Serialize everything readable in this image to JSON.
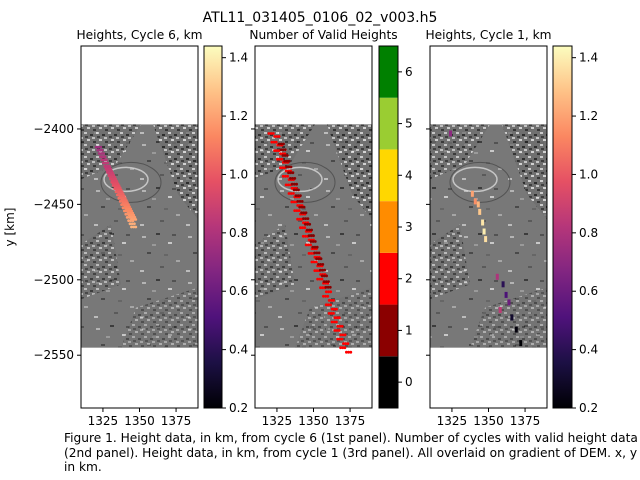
{
  "figure_title": "ATL11_031405_0106_02_v003.h5",
  "caption": "Figure 1. Height data, in km, from cycle 6 (1st panel). Number of cycles with valid height data (2nd panel). Height data, in km, from cycle 1 (3rd panel). All overlaid on gradient of DEM. x, y in km.",
  "colors": {
    "magma": [
      "#000004",
      "#1c1044",
      "#4f127b",
      "#812581",
      "#b5367a",
      "#e55064",
      "#fb8761",
      "#fec287",
      "#fcfdbf"
    ],
    "valid_count": [
      "#000000",
      "#8b0000",
      "#ff0000",
      "#ff8c00",
      "#ffd700",
      "#9acd32",
      "#008000"
    ]
  },
  "chart_data": [
    {
      "type": "scatter",
      "title": "Heights, Cycle 6, km",
      "xlabel": "",
      "ylabel": "y [km]",
      "xlim": [
        1310,
        1390
      ],
      "ylim": [
        -2585,
        -2345
      ],
      "xticks": [
        1325,
        1350,
        1375
      ],
      "yticks": [
        -2550,
        -2500,
        -2450,
        -2400
      ],
      "background": "gradient of DEM",
      "colorbar": {
        "cmap": "magma",
        "range": [
          0.2,
          1.44
        ],
        "ticks": [
          0.2,
          0.4,
          0.6,
          0.8,
          1.0,
          1.2,
          1.4
        ]
      },
      "tracks": [
        {
          "x_start": 1322,
          "y_start": -2412,
          "x_end": 1346,
          "y_end": -2465,
          "v_start": 0.75,
          "v_end": 1.25
        },
        {
          "x_start": 1328,
          "y_start": -2425,
          "x_end": 1346,
          "y_end": -2460,
          "v_start": 0.85,
          "v_end": 1.2
        }
      ]
    },
    {
      "type": "scatter",
      "title": "Number of Valid Heights",
      "xlabel": "",
      "ylabel": "",
      "xlim": [
        1310,
        1390
      ],
      "ylim": [
        -2585,
        -2345
      ],
      "xticks": [
        1325,
        1350,
        1375
      ],
      "yticks": [
        -2550,
        -2500,
        -2450,
        -2400
      ],
      "background": "gradient of DEM",
      "colorbar": {
        "discrete": true,
        "levels": [
          0,
          1,
          2,
          3,
          4,
          5,
          6
        ],
        "ticks": [
          0,
          1,
          2,
          3,
          4,
          5,
          6
        ]
      },
      "tracks": [
        {
          "x_start": 1321,
          "y_start": -2403,
          "x_end": 1370,
          "y_end": -2545,
          "value": 2
        },
        {
          "x_start": 1325,
          "y_start": -2405,
          "x_end": 1374,
          "y_end": -2548,
          "value": 2
        },
        {
          "x_start": 1328,
          "y_start": -2410,
          "x_end": 1360,
          "y_end": -2505,
          "value": 1
        }
      ]
    },
    {
      "type": "scatter",
      "title": "Heights, Cycle 1, km",
      "xlabel": "",
      "ylabel": "",
      "xlim": [
        1310,
        1390
      ],
      "ylim": [
        -2585,
        -2345
      ],
      "xticks": [
        1325,
        1350,
        1375
      ],
      "yticks": [
        -2550,
        -2500,
        -2450,
        -2400
      ],
      "background": "gradient of DEM",
      "colorbar": {
        "cmap": "magma",
        "range": [
          0.2,
          1.44
        ],
        "ticks": [
          0.2,
          0.4,
          0.6,
          0.8,
          1.0,
          1.2,
          1.4
        ]
      },
      "points": [
        {
          "x": 1324,
          "y": -2403,
          "v": 0.7
        },
        {
          "x": 1339,
          "y": -2443,
          "v": 1.2
        },
        {
          "x": 1341,
          "y": -2448,
          "v": 1.15
        },
        {
          "x": 1344,
          "y": -2455,
          "v": 1.3
        },
        {
          "x": 1346,
          "y": -2462,
          "v": 1.38
        },
        {
          "x": 1347,
          "y": -2468,
          "v": 1.4
        },
        {
          "x": 1348,
          "y": -2473,
          "v": 1.36
        },
        {
          "x": 1343,
          "y": -2450,
          "v": 1.25
        },
        {
          "x": 1356,
          "y": -2498,
          "v": 0.8
        },
        {
          "x": 1360,
          "y": -2503,
          "v": 0.4
        },
        {
          "x": 1362,
          "y": -2510,
          "v": 0.5
        },
        {
          "x": 1364,
          "y": -2515,
          "v": 0.6
        },
        {
          "x": 1358,
          "y": -2520,
          "v": 0.85
        },
        {
          "x": 1366,
          "y": -2525,
          "v": 0.3
        },
        {
          "x": 1369,
          "y": -2533,
          "v": 0.22
        },
        {
          "x": 1372,
          "y": -2542,
          "v": 0.2
        }
      ]
    }
  ]
}
